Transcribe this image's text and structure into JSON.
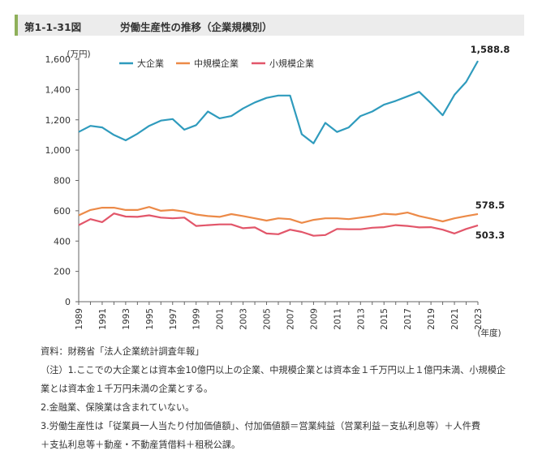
{
  "header": {
    "figure_number": "第1-1-31図",
    "title": "労働生産性の推移（企業規模別）"
  },
  "chart_data": {
    "type": "line",
    "y_unit_label": "(万円)",
    "x_unit_label": "(年度)",
    "ylim": [
      0,
      1600
    ],
    "y_ticks": [
      0,
      200,
      400,
      600,
      800,
      1000,
      1200,
      1400,
      1600
    ],
    "y_tick_labels": [
      "0",
      "200",
      "400",
      "600",
      "800",
      "1,000",
      "1,200",
      "1,400",
      "1,600"
    ],
    "x": [
      1989,
      1990,
      1991,
      1992,
      1993,
      1994,
      1995,
      1996,
      1997,
      1998,
      1999,
      2000,
      2001,
      2002,
      2003,
      2004,
      2005,
      2006,
      2007,
      2008,
      2009,
      2010,
      2011,
      2012,
      2013,
      2014,
      2015,
      2016,
      2017,
      2018,
      2019,
      2020,
      2021,
      2022,
      2023
    ],
    "x_tick_labels": [
      "1989",
      "1991",
      "1993",
      "1995",
      "1997",
      "1999",
      "2001",
      "2003",
      "2005",
      "2007",
      "2009",
      "2011",
      "2013",
      "2015",
      "2017",
      "2019",
      "2021",
      "2023"
    ],
    "grid": false,
    "legend_position": "top-left",
    "series": [
      {
        "name": "大企業",
        "color": "#2f9bbd",
        "values": [
          1120,
          1160,
          1150,
          1100,
          1065,
          1108,
          1160,
          1195,
          1205,
          1135,
          1165,
          1255,
          1210,
          1225,
          1275,
          1315,
          1345,
          1360,
          1360,
          1105,
          1045,
          1180,
          1120,
          1150,
          1225,
          1255,
          1300,
          1325,
          1355,
          1385,
          1310,
          1230,
          1365,
          1450,
          1588.8
        ],
        "end_label": "1,588.8"
      },
      {
        "name": "中規模企業",
        "color": "#ec8a48",
        "values": [
          570,
          605,
          620,
          620,
          605,
          605,
          625,
          600,
          605,
          595,
          575,
          565,
          560,
          578,
          565,
          550,
          535,
          550,
          545,
          520,
          540,
          550,
          550,
          545,
          555,
          565,
          580,
          575,
          588,
          565,
          548,
          530,
          550,
          565,
          578.5
        ],
        "end_label": "578.5"
      },
      {
        "name": "小規模企業",
        "color": "#e2566a",
        "values": [
          505,
          545,
          525,
          582,
          562,
          560,
          570,
          555,
          550,
          555,
          500,
          505,
          510,
          510,
          485,
          490,
          450,
          445,
          475,
          460,
          435,
          440,
          480,
          478,
          478,
          488,
          492,
          505,
          500,
          490,
          492,
          475,
          450,
          480,
          503.3
        ],
        "end_label": "503.3"
      }
    ]
  },
  "notes": [
    "資料：財務省「法人企業統計調査年報」",
    "（注）1.ここでの大企業とは資本金10億円以上の企業、中規模企業とは資本金１千万円以上１億円未満、小規模企",
    "業とは資本金１千万円未満の企業とする。",
    "2.金融業、保険業は含まれていない。",
    "3.労働生産性は「従業員一人当たり付加価値額」、付加価値額＝営業純益（営業利益－支払利息等）＋人件費",
    "＋支払利息等＋動産・不動産賃借料＋租税公課。"
  ]
}
